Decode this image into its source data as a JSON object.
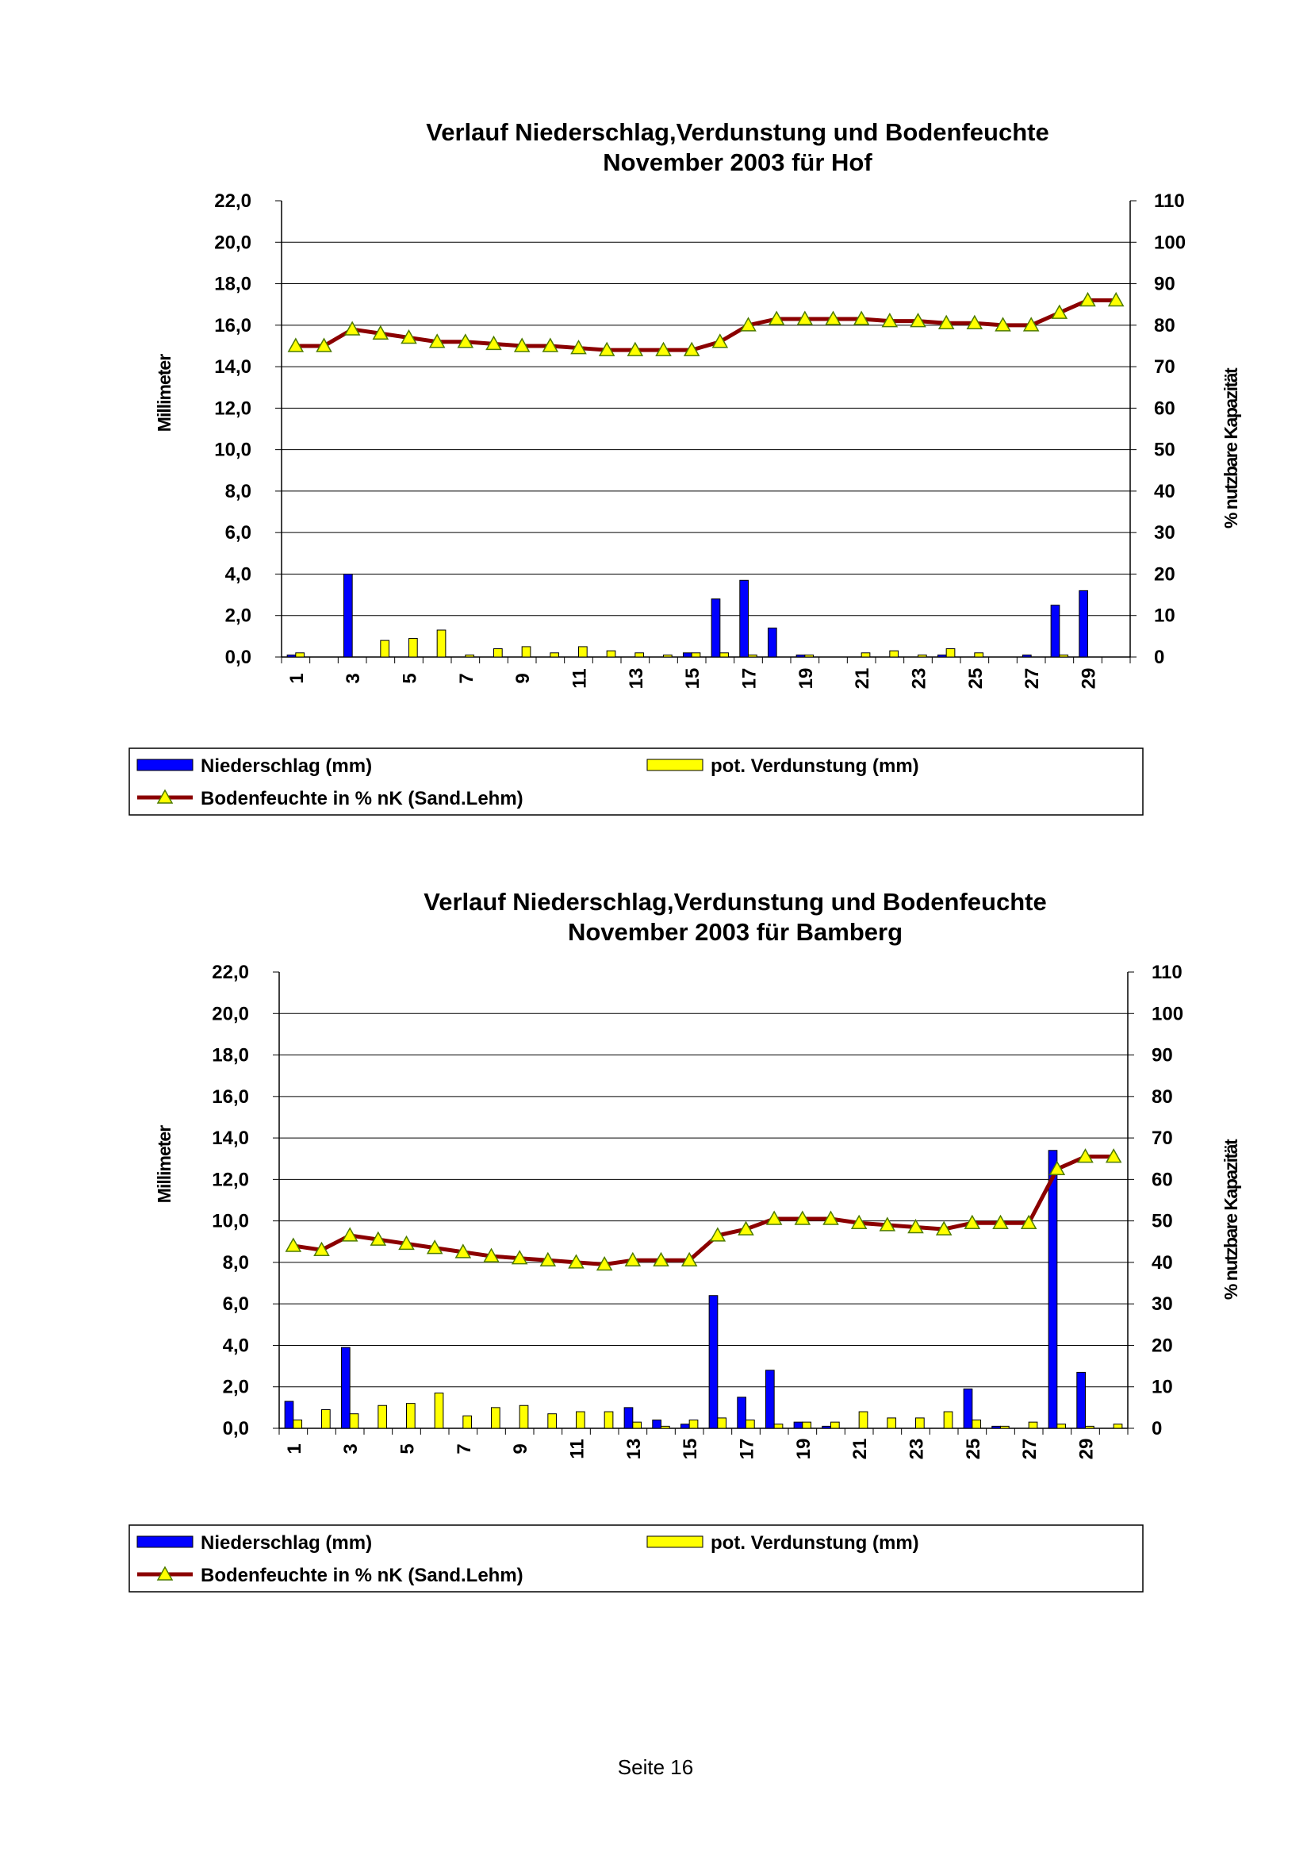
{
  "chart_data": [
    {
      "type": "bar",
      "title_line1": "Verlauf Niederschlag,Verdunstung und Bodenfeuchte",
      "title_line2": "November 2003 für Hof",
      "ylabel": "Millimeter",
      "y2label": "% nutzbare Kapazität",
      "ylim": [
        0,
        22
      ],
      "y_ticks": [
        "22,0",
        "20,0",
        "18,0",
        "16,0",
        "14,0",
        "12,0",
        "10,0",
        "8,0",
        "6,0",
        "4,0",
        "2,0",
        "0,0"
      ],
      "y2lim": [
        0,
        110
      ],
      "y2_ticks": [
        "110",
        "100",
        "90",
        "80",
        "70",
        "60",
        "50",
        "40",
        "30",
        "20",
        "10",
        "0"
      ],
      "x_tick_labels": [
        "1",
        "3",
        "5",
        "7",
        "9",
        "11",
        "13",
        "15",
        "17",
        "19",
        "21",
        "23",
        "25",
        "27",
        "29"
      ],
      "categories": [
        "1",
        "2",
        "3",
        "4",
        "5",
        "6",
        "7",
        "8",
        "9",
        "10",
        "11",
        "12",
        "13",
        "14",
        "15",
        "16",
        "17",
        "18",
        "19",
        "20",
        "21",
        "22",
        "23",
        "24",
        "25",
        "26",
        "27",
        "28",
        "29",
        "30"
      ],
      "grid": true,
      "legend_position": "bottom",
      "series": [
        {
          "name": "Niederschlag (mm)",
          "kind": "bar",
          "axis": "left",
          "color": "#0000ff",
          "values": [
            0.1,
            0,
            4.0,
            0,
            0,
            0,
            0,
            0,
            0,
            0,
            0,
            0,
            0,
            0,
            0.2,
            2.8,
            3.7,
            1.4,
            0.1,
            0,
            0,
            0,
            0,
            0.1,
            0,
            0,
            0.1,
            2.5,
            3.2,
            0
          ]
        },
        {
          "name": "pot. Verdunstung (mm)",
          "kind": "bar",
          "axis": "left",
          "color": "#ffff00",
          "values": [
            0.2,
            0,
            0,
            0.8,
            0.9,
            1.3,
            0.1,
            0.4,
            0.5,
            0.2,
            0.5,
            0.3,
            0.2,
            0.1,
            0.2,
            0.2,
            0.1,
            0,
            0.1,
            0,
            0.2,
            0.3,
            0.1,
            0.4,
            0.2,
            0,
            0,
            0.1,
            0,
            0
          ]
        },
        {
          "name": "Bodenfeuchte in % nK (Sand.Lehm)",
          "kind": "line",
          "axis": "right",
          "color": "#8b0000",
          "marker_color": "#ffff00",
          "values": [
            75,
            75,
            79,
            78,
            77,
            76,
            76,
            75.5,
            75,
            75,
            74.5,
            74,
            74,
            74,
            74,
            76,
            80,
            81.5,
            81.5,
            81.5,
            81.5,
            81,
            81,
            80.5,
            80.5,
            80,
            80,
            83,
            86,
            86
          ]
        }
      ]
    },
    {
      "type": "bar",
      "title_line1": "Verlauf Niederschlag,Verdunstung und Bodenfeuchte",
      "title_line2": "November 2003 für Bamberg",
      "ylabel": "Millimeter",
      "y2label": "% nutzbare Kapazität",
      "ylim": [
        0,
        22
      ],
      "y_ticks": [
        "22,0",
        "20,0",
        "18,0",
        "16,0",
        "14,0",
        "12,0",
        "10,0",
        "8,0",
        "6,0",
        "4,0",
        "2,0",
        "0,0"
      ],
      "y2lim": [
        0,
        110
      ],
      "y2_ticks": [
        "110",
        "100",
        "90",
        "80",
        "70",
        "60",
        "50",
        "40",
        "30",
        "20",
        "10",
        "0"
      ],
      "x_tick_labels": [
        "1",
        "3",
        "5",
        "7",
        "9",
        "11",
        "13",
        "15",
        "17",
        "19",
        "21",
        "23",
        "25",
        "27",
        "29"
      ],
      "categories": [
        "1",
        "2",
        "3",
        "4",
        "5",
        "6",
        "7",
        "8",
        "9",
        "10",
        "11",
        "12",
        "13",
        "14",
        "15",
        "16",
        "17",
        "18",
        "19",
        "20",
        "21",
        "22",
        "23",
        "24",
        "25",
        "26",
        "27",
        "28",
        "29",
        "30"
      ],
      "grid": true,
      "legend_position": "bottom",
      "series": [
        {
          "name": "Niederschlag (mm)",
          "kind": "bar",
          "axis": "left",
          "color": "#0000ff",
          "values": [
            1.3,
            0,
            3.9,
            0,
            0,
            0,
            0,
            0,
            0,
            0,
            0,
            0,
            1.0,
            0.4,
            0.2,
            6.4,
            1.5,
            2.8,
            0.3,
            0.1,
            0,
            0,
            0,
            0,
            1.9,
            0.1,
            0,
            13.4,
            2.7,
            0
          ]
        },
        {
          "name": "pot. Verdunstung (mm)",
          "kind": "bar",
          "axis": "left",
          "color": "#ffff00",
          "values": [
            0.4,
            0.9,
            0.7,
            1.1,
            1.2,
            1.7,
            0.6,
            1.0,
            1.1,
            0.7,
            0.8,
            0.8,
            0.3,
            0.1,
            0.4,
            0.5,
            0.4,
            0.2,
            0.3,
            0.3,
            0.8,
            0.5,
            0.5,
            0.8,
            0.4,
            0.1,
            0.3,
            0.2,
            0.1,
            0.2
          ]
        },
        {
          "name": "Bodenfeuchte in % nK (Sand.Lehm)",
          "kind": "line",
          "axis": "right",
          "color": "#8b0000",
          "marker_color": "#ffff00",
          "values": [
            44,
            43,
            46.5,
            45.5,
            44.5,
            43.5,
            42.5,
            41.5,
            41,
            40.5,
            40,
            39.5,
            40.5,
            40.5,
            40.5,
            46.5,
            48,
            50.5,
            50.5,
            50.5,
            49.5,
            49,
            48.5,
            48,
            49.5,
            49.5,
            49.5,
            62.5,
            65.5,
            65.5
          ]
        }
      ]
    }
  ],
  "footer": "Seite 16"
}
